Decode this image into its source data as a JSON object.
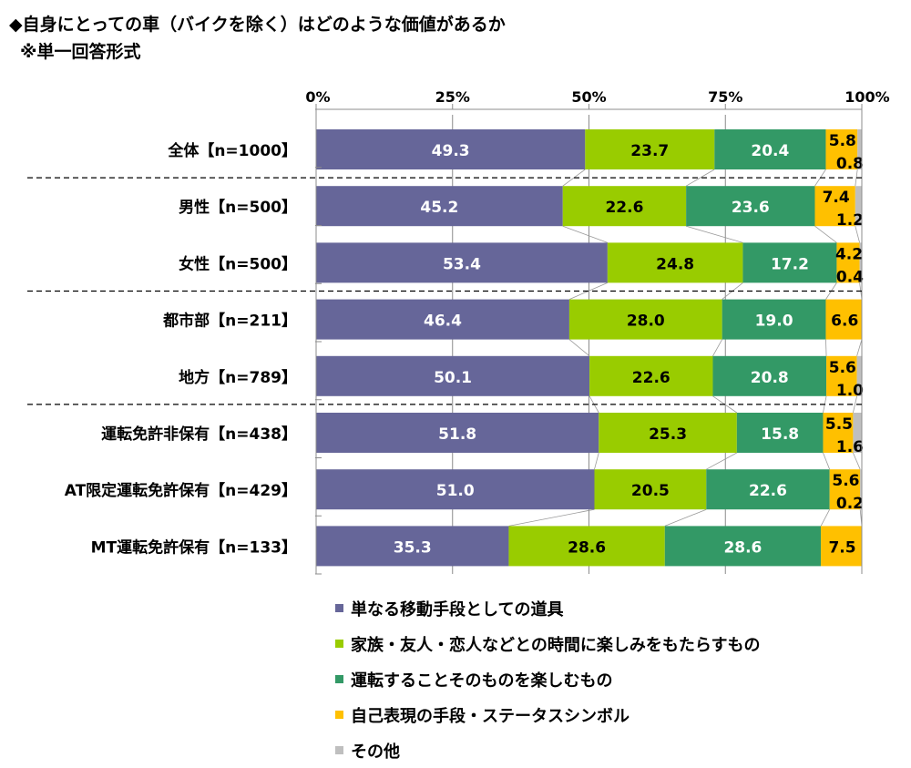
{
  "title": "◆自身にとっての車（バイクを除く）はどのような価値があるか",
  "subtitle": "※単一回答形式",
  "colors": {
    "tool": "#666699",
    "family": "#99CC00",
    "driving": "#339966",
    "self": "#FFC000",
    "other": "#BFBFBF"
  },
  "chart_data": {
    "type": "bar",
    "orientation": "horizontal",
    "stacked": true,
    "percent": true,
    "xlim": [
      0,
      100
    ],
    "xticks": [
      "0%",
      "25%",
      "50%",
      "75%",
      "100%"
    ],
    "legend_position": "bottom",
    "categories": [
      "全体【n=1000】",
      "男性【n=500】",
      "女性【n=500】",
      "都市部【n=211】",
      "地方【n=789】",
      "運転免許非保有【n=438】",
      "AT限定運転免許保有【n=429】",
      "MT運転免許保有【n=133】"
    ],
    "group_separators_after": [
      0,
      2,
      4
    ],
    "series": [
      {
        "name": "単なる移動手段としての道具",
        "color_key": "tool",
        "values": [
          49.3,
          45.2,
          53.4,
          46.4,
          50.1,
          51.8,
          51.0,
          35.3
        ],
        "labels": [
          "49.3",
          "45.2",
          "53.4",
          "46.4",
          "50.1",
          "51.8",
          "51.0",
          "35.3"
        ]
      },
      {
        "name": "家族・友人・恋人などとの時間に楽しみをもたらすもの",
        "color_key": "family",
        "values": [
          23.7,
          22.6,
          24.8,
          28.0,
          22.6,
          25.3,
          20.5,
          28.6
        ],
        "labels": [
          "23.7",
          "22.6",
          "24.8",
          "28.0",
          "22.6",
          "25.3",
          "20.5",
          "28.6"
        ]
      },
      {
        "name": "運転することそのものを楽しむもの",
        "color_key": "driving",
        "values": [
          20.4,
          23.6,
          17.2,
          19.0,
          20.8,
          15.8,
          22.6,
          28.6
        ],
        "labels": [
          "20.4",
          "23.6",
          "17.2",
          "19.0",
          "20.8",
          "15.8",
          "22.6",
          "28.6"
        ]
      },
      {
        "name": "自己表現の手段・ステータスシンボル",
        "color_key": "self",
        "values": [
          5.8,
          7.4,
          4.2,
          6.6,
          5.6,
          5.5,
          5.6,
          7.5
        ],
        "labels": [
          "5.8",
          "7.4",
          "4.2",
          "6.6",
          "5.6",
          "5.5",
          "5.6",
          "7.5"
        ]
      },
      {
        "name": "その他",
        "color_key": "other",
        "values": [
          0.8,
          1.2,
          0.4,
          0.0,
          1.0,
          1.6,
          0.2,
          0.0
        ],
        "labels": [
          "0.8",
          "1.2",
          "0.4",
          "",
          "1.0",
          "1.6",
          "0.2",
          ""
        ]
      }
    ]
  }
}
